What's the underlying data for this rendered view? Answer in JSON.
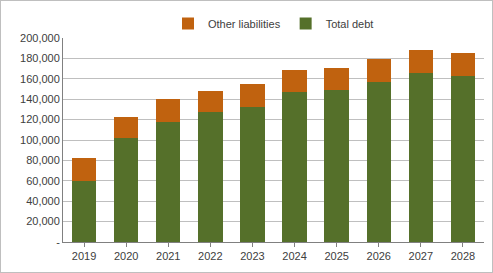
{
  "chart_data": {
    "type": "bar",
    "stacked": true,
    "categories": [
      "2019",
      "2020",
      "2021",
      "2022",
      "2023",
      "2024",
      "2025",
      "2026",
      "2027",
      "2028"
    ],
    "series": [
      {
        "name": "Total debt",
        "color": "#55702a",
        "values": [
          60000,
          102000,
          118000,
          127000,
          132000,
          147000,
          149000,
          157000,
          166000,
          163000
        ]
      },
      {
        "name": "Other liabilities",
        "color": "#c0620f",
        "values": [
          22000,
          21000,
          22000,
          21000,
          23000,
          22000,
          22000,
          22000,
          22000,
          22000
        ]
      }
    ],
    "ylim": [
      0,
      200000
    ],
    "yticks": [
      {
        "value": 0,
        "label": "-"
      },
      {
        "value": 20000,
        "label": "20,000"
      },
      {
        "value": 40000,
        "label": "40,000"
      },
      {
        "value": 60000,
        "label": "60,000"
      },
      {
        "value": 80000,
        "label": "80,000"
      },
      {
        "value": 100000,
        "label": "100,000"
      },
      {
        "value": 120000,
        "label": "120,000"
      },
      {
        "value": 140000,
        "label": "140,000"
      },
      {
        "value": 160000,
        "label": "160,000"
      },
      {
        "value": 180000,
        "label": "180,000"
      },
      {
        "value": 200000,
        "label": "200,000"
      }
    ],
    "grid": true,
    "legend": "top"
  }
}
